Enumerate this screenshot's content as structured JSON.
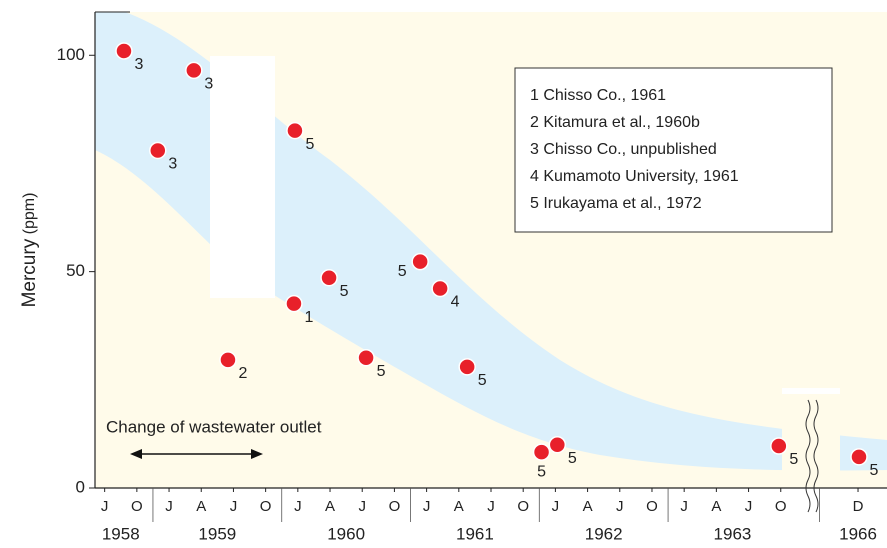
{
  "chart_data": {
    "type": "scatter",
    "y_label": "Mercury",
    "y_unit": "(ppm)",
    "ylim": [
      0,
      110
    ],
    "yticks": [
      0,
      50,
      100
    ],
    "xlim": [
      -0.3,
      24.3
    ],
    "x_groups": [
      {
        "year": "1958",
        "ticks": [
          {
            "value": 0,
            "label": "J"
          },
          {
            "value": 1,
            "label": "O"
          }
        ]
      },
      {
        "year": "1959",
        "ticks": [
          {
            "value": 2,
            "label": "J"
          },
          {
            "value": 3,
            "label": "A"
          },
          {
            "value": 4,
            "label": "J"
          },
          {
            "value": 5,
            "label": "O"
          }
        ]
      },
      {
        "year": "1960",
        "ticks": [
          {
            "value": 6,
            "label": "J"
          },
          {
            "value": 7,
            "label": "A"
          },
          {
            "value": 8,
            "label": "J"
          },
          {
            "value": 9,
            "label": "O"
          }
        ]
      },
      {
        "year": "1961",
        "ticks": [
          {
            "value": 10,
            "label": "J"
          },
          {
            "value": 11,
            "label": "A"
          },
          {
            "value": 12,
            "label": "J"
          },
          {
            "value": 13,
            "label": "O"
          }
        ]
      },
      {
        "year": "1962",
        "ticks": [
          {
            "value": 14,
            "label": "J"
          },
          {
            "value": 15,
            "label": "A"
          },
          {
            "value": 16,
            "label": "J"
          },
          {
            "value": 17,
            "label": "O"
          }
        ]
      },
      {
        "year": "1963",
        "ticks": [
          {
            "value": 18,
            "label": "J"
          },
          {
            "value": 19,
            "label": "A"
          },
          {
            "value": 20,
            "label": "J"
          },
          {
            "value": 21,
            "label": "O"
          }
        ]
      },
      {
        "year": "1966",
        "ticks": [
          {
            "value": 23.4,
            "label": "D"
          }
        ]
      }
    ],
    "x": [
      0.6,
      1.65,
      2.77,
      3.83,
      5.91,
      5.88,
      6.97,
      8.12,
      9.8,
      10.42,
      11.26,
      13.57,
      14.06,
      20.94,
      23.43
    ],
    "values": [
      101,
      78,
      96.5,
      29.6,
      82.6,
      42.6,
      48.6,
      30.1,
      52.3,
      46.1,
      28,
      8.3,
      10,
      9.7,
      7.2
    ],
    "point_labels": [
      "3",
      "3",
      "3",
      "2",
      "5",
      "1",
      "5",
      "5",
      "5",
      "4",
      "5",
      "5",
      "5",
      "5",
      "5"
    ],
    "color": "#e8202a",
    "legend": [
      "1 Chisso Co., 1961",
      "2 Kitamura et al., 1960b",
      "3 Chisso Co., unpublished",
      "4 Kumamoto University, 1961",
      "5 Irukayama et al., 1972"
    ],
    "annotation": "Change of wastewater outlet"
  }
}
